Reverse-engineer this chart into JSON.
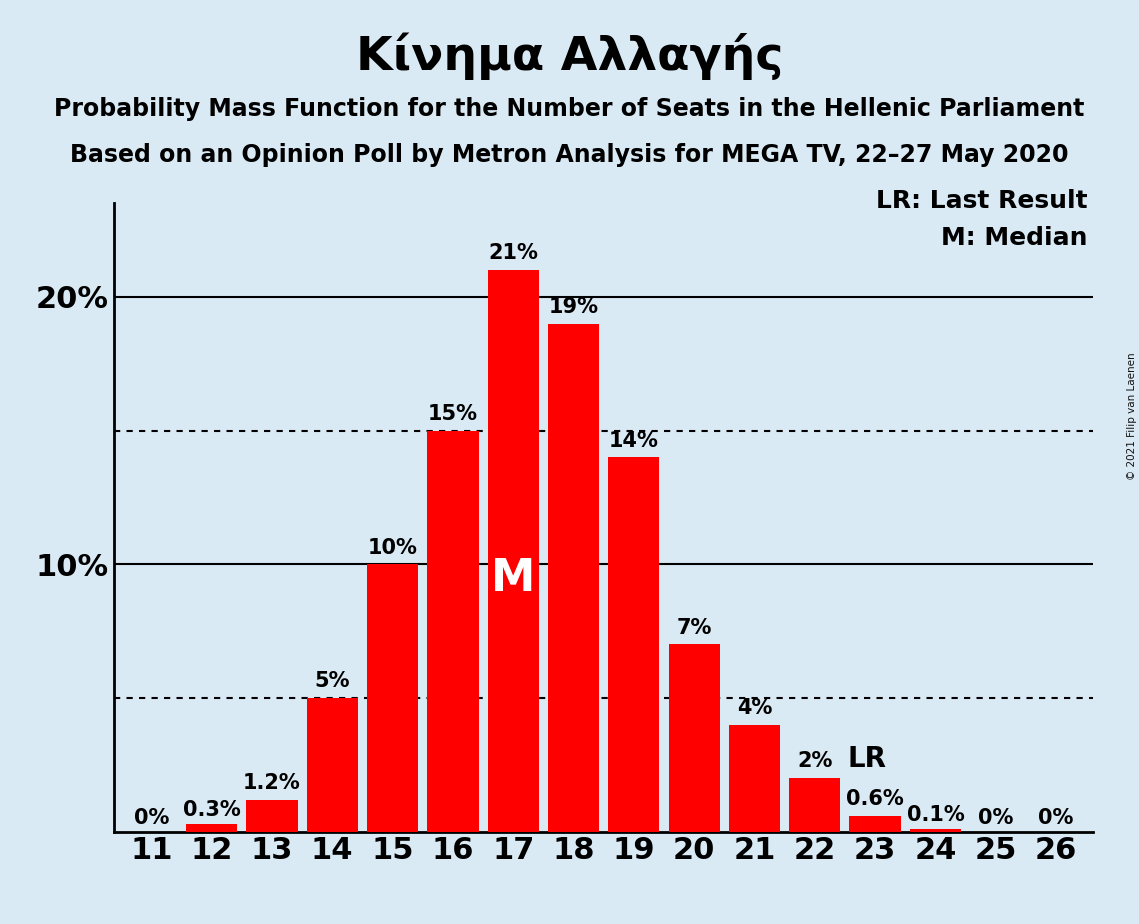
{
  "title": "Κίνημα Αλλαγής",
  "subtitle1": "Probability Mass Function for the Number of Seats in the Hellenic Parliament",
  "subtitle2": "Based on an Opinion Poll by Metron Analysis for MEGA TV, 22–27 May 2020",
  "copyright": "© 2021 Filip van Laenen",
  "seats": [
    11,
    12,
    13,
    14,
    15,
    16,
    17,
    18,
    19,
    20,
    21,
    22,
    23,
    24,
    25,
    26
  ],
  "probabilities": [
    0.0,
    0.3,
    1.2,
    5.0,
    10.0,
    15.0,
    21.0,
    19.0,
    14.0,
    7.0,
    4.0,
    2.0,
    0.6,
    0.1,
    0.0,
    0.0
  ],
  "labels": [
    "0%",
    "0.3%",
    "1.2%",
    "5%",
    "10%",
    "15%",
    "21%",
    "19%",
    "14%",
    "7%",
    "4%",
    "2%",
    "0.6%",
    "0.1%",
    "0%",
    "0%"
  ],
  "bar_color": "#ff0000",
  "background_color": "#daeaf5",
  "median_seat": 17,
  "lr_seat": 22,
  "lr_value": 4.0,
  "dotted_lines": [
    5.0,
    15.0
  ],
  "title_fontsize": 34,
  "subtitle_fontsize": 17,
  "axis_tick_fontsize": 22,
  "bar_label_fontsize": 15,
  "median_label_fontsize": 32,
  "lr_label_fontsize": 20,
  "legend_fontsize": 18,
  "ylim_max": 23.5
}
